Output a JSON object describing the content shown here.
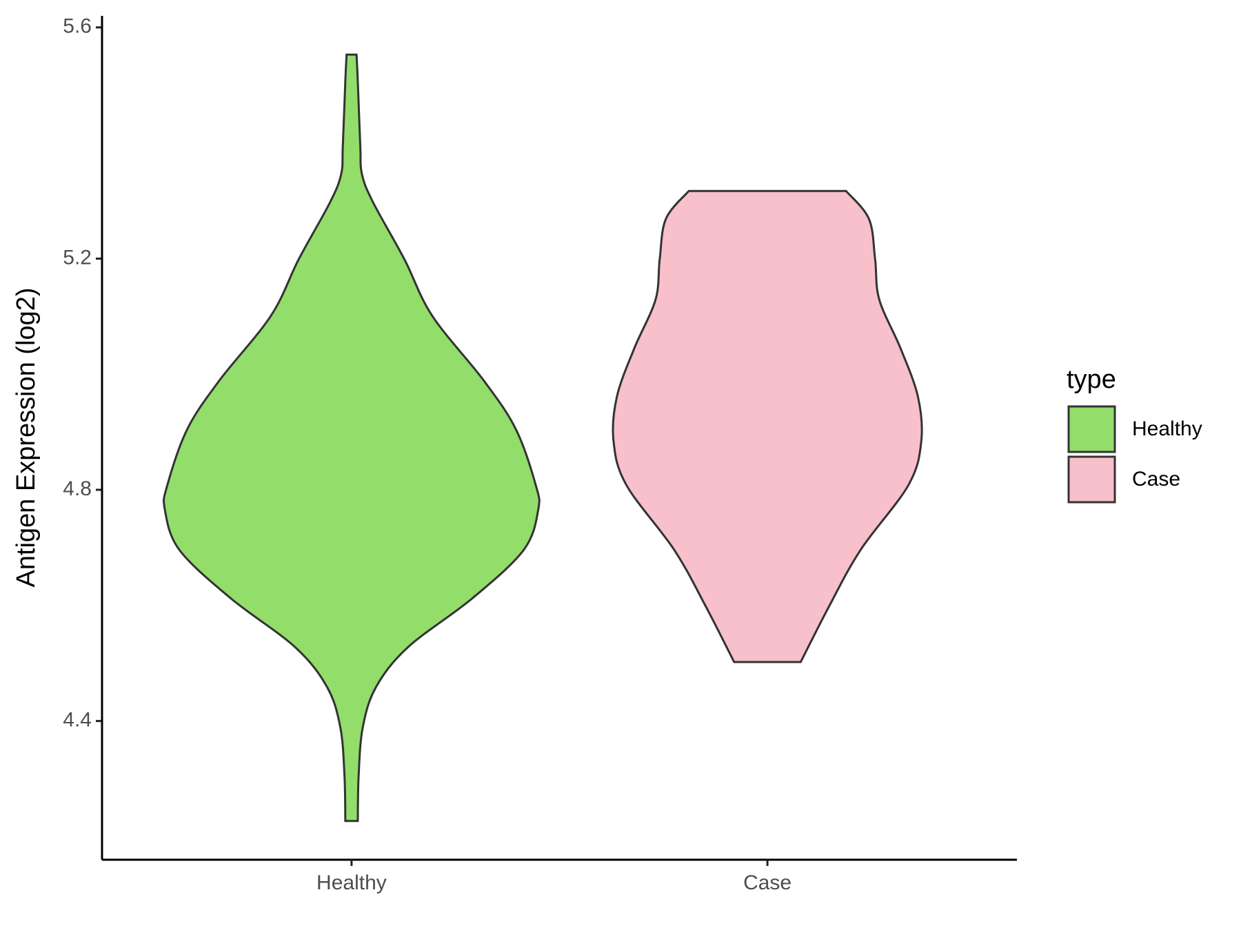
{
  "chart_data": {
    "type": "violin",
    "y_label": "Antigen Expression (log2)",
    "categories": [
      "Healthy",
      "Case"
    ],
    "legend_title": "type",
    "series": [
      {
        "name": "Healthy",
        "color": "#93dd6a",
        "y": [
          5.553,
          5.507,
          5.395,
          5.346,
          5.297,
          5.199,
          5.101,
          4.989,
          4.905,
          4.808,
          4.766,
          4.696,
          4.612,
          4.528,
          4.459,
          4.389,
          4.305,
          4.227
        ],
        "half_width": [
          0.012,
          0.015,
          0.021,
          0.025,
          0.052,
          0.127,
          0.194,
          0.318,
          0.395,
          0.443,
          0.449,
          0.414,
          0.29,
          0.136,
          0.059,
          0.027,
          0.017,
          0.015
        ]
      },
      {
        "name": "Case",
        "color": "#f7c0cb",
        "y": [
          5.317,
          5.269,
          5.199,
          5.129,
          5.045,
          4.961,
          4.884,
          4.808,
          4.696,
          4.598,
          4.502
        ],
        "half_width": [
          0.189,
          0.244,
          0.259,
          0.269,
          0.32,
          0.362,
          0.37,
          0.339,
          0.224,
          0.148,
          0.08
        ]
      }
    ],
    "ylim": [
      4.16,
      5.62
    ],
    "yticks": [
      4.4,
      4.8,
      5.2,
      5.6
    ]
  }
}
